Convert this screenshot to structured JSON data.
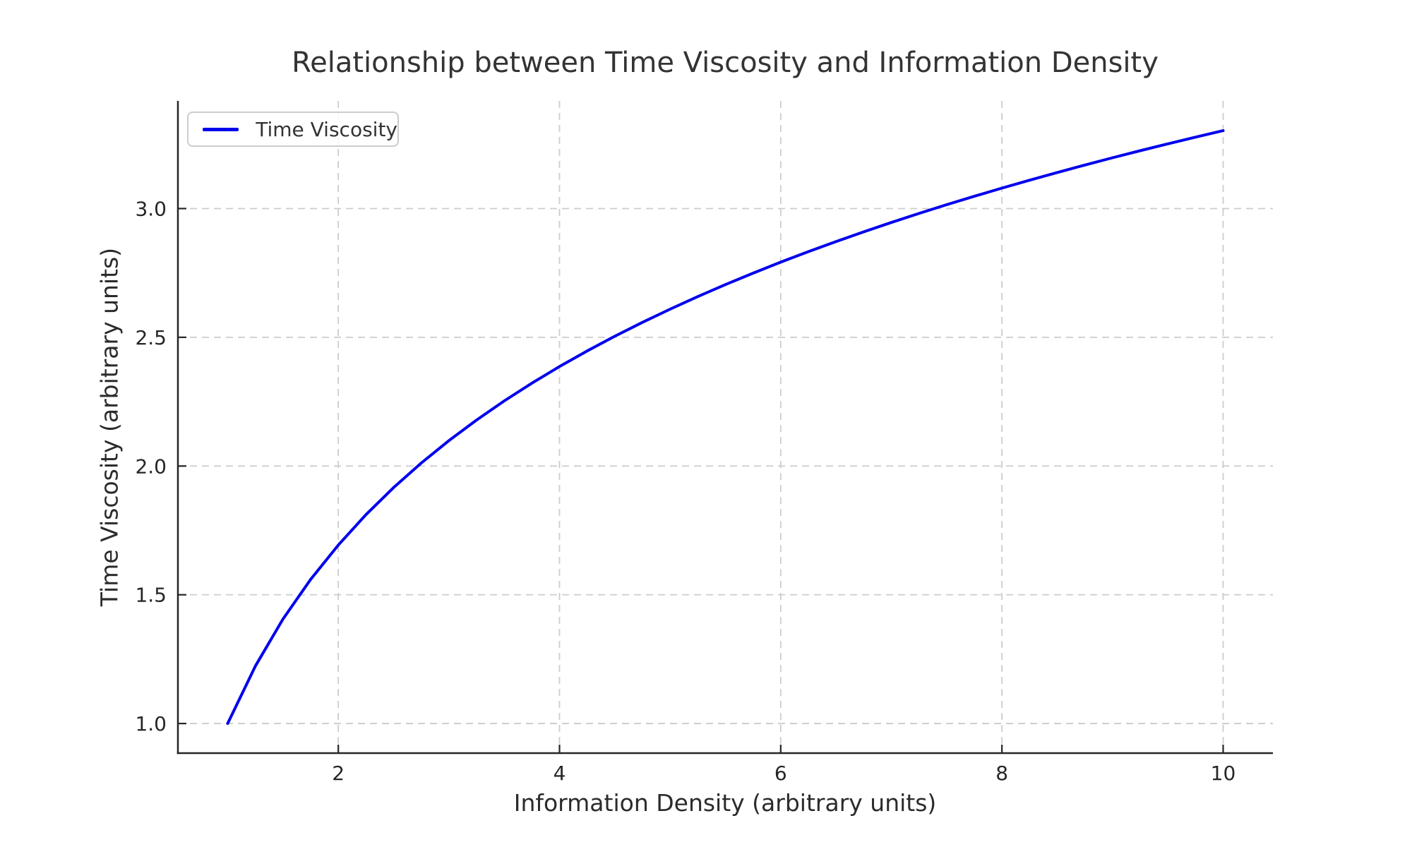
{
  "figure": {
    "background": "#ffffff"
  },
  "chart_data": {
    "type": "line",
    "title": "Relationship between Time Viscosity and Information Density",
    "xlabel": "Information Density (arbitrary units)",
    "ylabel": "Time Viscosity (arbitrary units)",
    "xlim": [
      0.55,
      10.45
    ],
    "ylim": [
      0.885,
      3.418
    ],
    "xticks": [
      2,
      4,
      6,
      8,
      10
    ],
    "xtick_labels": [
      "2",
      "4",
      "6",
      "8",
      "10"
    ],
    "yticks": [
      1.0,
      1.5,
      2.0,
      2.5,
      3.0
    ],
    "ytick_labels": [
      "1.0",
      "1.5",
      "2.0",
      "2.5",
      "3.0"
    ],
    "grid": true,
    "grid_color": "#cccccc",
    "axis_color": "#262626",
    "legend": {
      "position": "upper-left",
      "entries": [
        {
          "label": "Time Viscosity",
          "color": "#0000ee"
        }
      ]
    },
    "series": [
      {
        "name": "Time Viscosity",
        "color": "#0000ee",
        "x": [
          1.0,
          1.25,
          1.5,
          1.75,
          2.0,
          2.25,
          2.5,
          2.75,
          3.0,
          3.25,
          3.5,
          3.75,
          4.0,
          4.25,
          4.5,
          4.75,
          5.0,
          5.25,
          5.5,
          5.75,
          6.0,
          6.25,
          6.5,
          6.75,
          7.0,
          7.25,
          7.5,
          7.75,
          8.0,
          8.25,
          8.5,
          8.75,
          9.0,
          9.25,
          9.5,
          9.75,
          10.0
        ],
        "y": [
          1.0,
          1.2231,
          1.4055,
          1.5596,
          1.6931,
          1.8109,
          1.9163,
          2.0116,
          2.0986,
          2.1787,
          2.2528,
          2.3217,
          2.3863,
          2.4469,
          2.5041,
          2.5581,
          2.6094,
          2.6582,
          2.7047,
          2.7492,
          2.7918,
          2.8326,
          2.8718,
          2.9096,
          2.9459,
          2.981,
          3.0149,
          3.0477,
          3.0794,
          3.1102,
          3.1401,
          3.1691,
          3.1972,
          3.2246,
          3.2513,
          3.2773,
          3.3026
        ]
      }
    ]
  }
}
